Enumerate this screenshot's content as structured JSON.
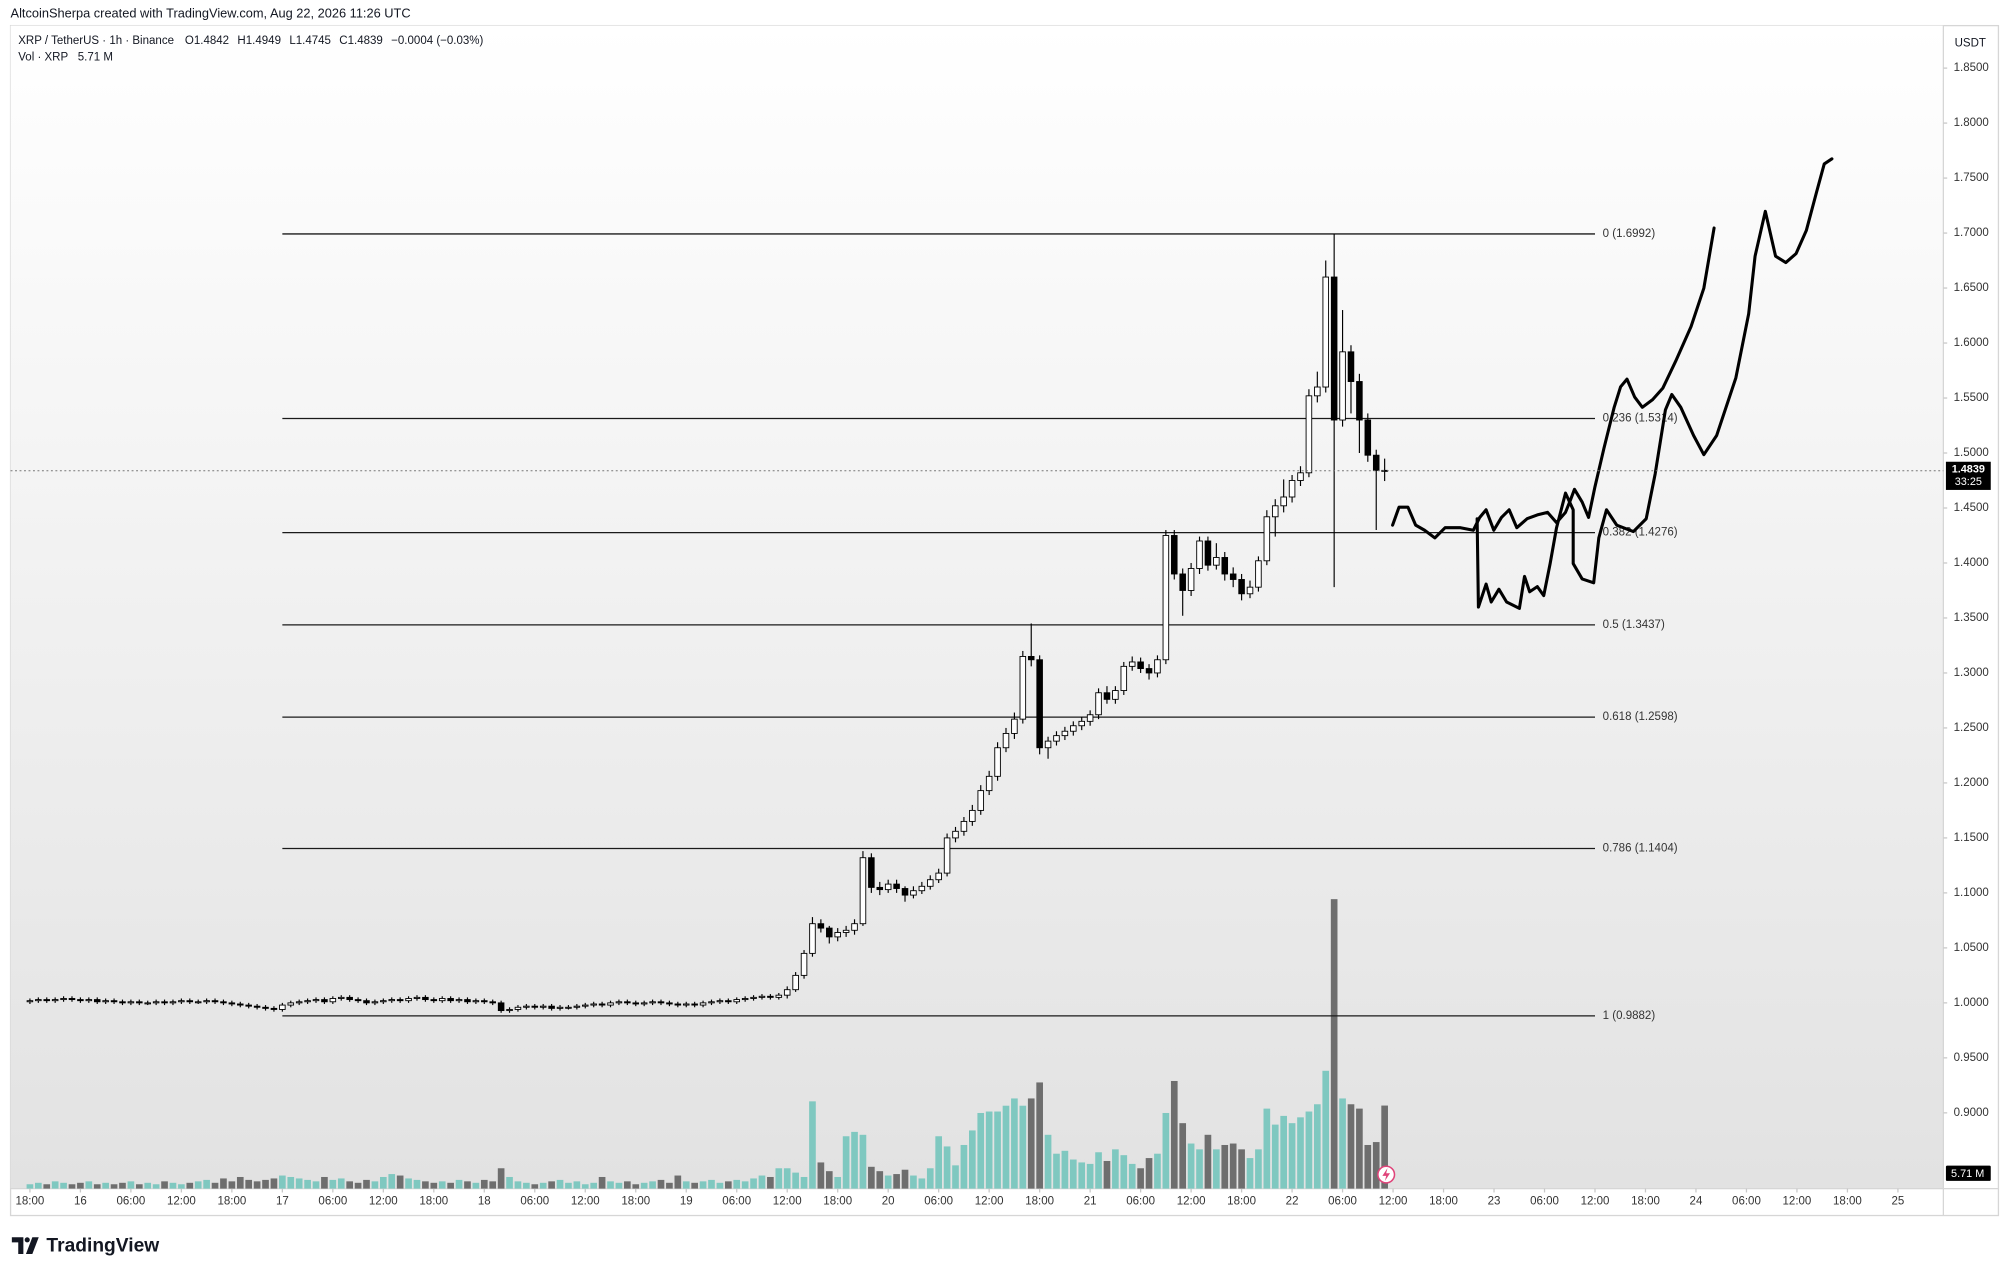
{
  "chart_data": {
    "type": "candlestick",
    "header": {
      "credit": "AltcoinSherpa created with TradingView.com, Aug 22, 2026 11:26 UTC",
      "symbol": "XRP / TetherUS · 1h · Binance",
      "ohlc": [
        {
          "key": "O",
          "value": "1.4842"
        },
        {
          "key": "H",
          "value": "1.4949"
        },
        {
          "key": "L",
          "value": "1.4745"
        },
        {
          "key": "C",
          "value": "1.4839"
        }
      ],
      "change": "−0.0004 (−0.03%)",
      "volume_label": "Vol · XRP",
      "volume_value": "5.71 M"
    },
    "currency": "USDT",
    "last_price_label": "1.4839",
    "countdown": "33:25",
    "volume_badge": "5.71 M",
    "brand": "TradingView",
    "up_color": "#ffffff",
    "down_color": "#000000",
    "volume_up_color": "#7fc8c0",
    "volume_down_color": "#6e6e6e",
    "grid": false,
    "xlim": [
      -2.3,
      227.4
    ],
    "ylim": [
      0.8311,
      1.8863
    ],
    "xticks": [
      {
        "value": 0,
        "label": "18:00"
      },
      {
        "value": 6,
        "label": "16"
      },
      {
        "value": 12,
        "label": "06:00"
      },
      {
        "value": 18,
        "label": "12:00"
      },
      {
        "value": 24,
        "label": "18:00"
      },
      {
        "value": 30,
        "label": "17"
      },
      {
        "value": 36,
        "label": "06:00"
      },
      {
        "value": 42,
        "label": "12:00"
      },
      {
        "value": 48,
        "label": "18:00"
      },
      {
        "value": 54,
        "label": "18"
      },
      {
        "value": 60,
        "label": "06:00"
      },
      {
        "value": 66,
        "label": "12:00"
      },
      {
        "value": 72,
        "label": "18:00"
      },
      {
        "value": 78,
        "label": "19"
      },
      {
        "value": 84,
        "label": "06:00"
      },
      {
        "value": 90,
        "label": "12:00"
      },
      {
        "value": 96,
        "label": "18:00"
      },
      {
        "value": 102,
        "label": "20"
      },
      {
        "value": 108,
        "label": "06:00"
      },
      {
        "value": 114,
        "label": "12:00"
      },
      {
        "value": 120,
        "label": "18:00"
      },
      {
        "value": 126,
        "label": "21"
      },
      {
        "value": 132,
        "label": "06:00"
      },
      {
        "value": 138,
        "label": "12:00"
      },
      {
        "value": 144,
        "label": "18:00"
      },
      {
        "value": 150,
        "label": "22"
      },
      {
        "value": 156,
        "label": "06:00"
      },
      {
        "value": 162,
        "label": "12:00"
      },
      {
        "value": 168,
        "label": "18:00"
      },
      {
        "value": 174,
        "label": "23"
      },
      {
        "value": 180,
        "label": "06:00"
      },
      {
        "value": 186,
        "label": "12:00"
      },
      {
        "value": 192,
        "label": "18:00"
      },
      {
        "value": 198,
        "label": "24"
      },
      {
        "value": 204,
        "label": "06:00"
      },
      {
        "value": 210,
        "label": "12:00"
      },
      {
        "value": 216,
        "label": "18:00"
      },
      {
        "value": 222,
        "label": "25"
      }
    ],
    "yticks": [
      {
        "value": 0.9,
        "label": "0.9000"
      },
      {
        "value": 0.95,
        "label": "0.9500"
      },
      {
        "value": 1.0,
        "label": "1.0000"
      },
      {
        "value": 1.05,
        "label": "1.0500"
      },
      {
        "value": 1.1,
        "label": "1.1000"
      },
      {
        "value": 1.15,
        "label": "1.1500"
      },
      {
        "value": 1.2,
        "label": "1.2000"
      },
      {
        "value": 1.25,
        "label": "1.2500"
      },
      {
        "value": 1.3,
        "label": "1.3000"
      },
      {
        "value": 1.35,
        "label": "1.3500"
      },
      {
        "value": 1.4,
        "label": "1.4000"
      },
      {
        "value": 1.45,
        "label": "1.4500"
      },
      {
        "value": 1.5,
        "label": "1.5000"
      },
      {
        "value": 1.55,
        "label": "1.5500"
      },
      {
        "value": 1.6,
        "label": "1.6000"
      },
      {
        "value": 1.65,
        "label": "1.6500"
      },
      {
        "value": 1.7,
        "label": "1.7000"
      },
      {
        "value": 1.75,
        "label": "1.7500"
      },
      {
        "value": 1.8,
        "label": "1.8000"
      },
      {
        "value": 1.85,
        "label": "1.8500"
      }
    ],
    "fib": {
      "xrange": [
        30,
        186
      ],
      "levels": [
        {
          "label": "0 (1.6992)",
          "price": 1.6992
        },
        {
          "label": "0.236 (1.5314)",
          "price": 1.5314
        },
        {
          "label": "0.382 (1.4276)",
          "price": 1.4276
        },
        {
          "label": "0.5 (1.3437)",
          "price": 1.3437
        },
        {
          "label": "0.618 (1.2598)",
          "price": 1.2598
        },
        {
          "label": "0.786 (1.1404)",
          "price": 1.1404
        },
        {
          "label": "1 (0.9882)",
          "price": 0.9882
        }
      ]
    },
    "x": [
      0,
      1,
      2,
      3,
      4,
      5,
      6,
      7,
      8,
      9,
      10,
      11,
      12,
      13,
      14,
      15,
      16,
      17,
      18,
      19,
      20,
      21,
      22,
      23,
      24,
      25,
      26,
      27,
      28,
      29,
      30,
      31,
      32,
      33,
      34,
      35,
      36,
      37,
      38,
      39,
      40,
      41,
      42,
      43,
      44,
      45,
      46,
      47,
      48,
      49,
      50,
      51,
      52,
      53,
      54,
      55,
      56,
      57,
      58,
      59,
      60,
      61,
      62,
      63,
      64,
      65,
      66,
      67,
      68,
      69,
      70,
      71,
      72,
      73,
      74,
      75,
      76,
      77,
      78,
      79,
      80,
      81,
      82,
      83,
      84,
      85,
      86,
      87,
      88,
      89,
      90,
      91,
      92,
      93,
      94,
      95,
      96,
      97,
      98,
      99,
      100,
      101,
      102,
      103,
      104,
      105,
      106,
      107,
      108,
      109,
      110,
      111,
      112,
      113,
      114,
      115,
      116,
      117,
      118,
      119,
      120,
      121,
      122,
      123,
      124,
      125,
      126,
      127,
      128,
      129,
      130,
      131,
      132,
      133,
      134,
      135,
      136,
      137,
      138,
      139,
      140,
      141,
      142,
      143,
      144,
      145,
      146,
      147,
      148,
      149,
      150,
      151,
      152,
      153,
      154,
      155,
      156,
      157,
      158,
      159,
      160,
      161
    ],
    "open": [
      1.001,
      1.002,
      1.003,
      1.002,
      1.003,
      1.004,
      1.003,
      1.002,
      1.003,
      1.001,
      1.002,
      1.001,
      1.0,
      1.001,
      1.0,
      1.0,
      1.001,
      1.0,
      1.001,
      1.002,
      1.001,
      1.001,
      1.002,
      1.001,
      1.0,
      0.999,
      0.998,
      0.997,
      0.996,
      0.995,
      0.994,
      0.998,
      1.0,
      1.001,
      1.002,
      1.003,
      1.001,
      1.004,
      1.005,
      1.003,
      1.002,
      1.0,
      1.001,
      1.002,
      1.003,
      1.002,
      1.004,
      1.005,
      1.003,
      1.002,
      1.004,
      1.002,
      1.003,
      1.001,
      1.002,
      1.001,
      1.0,
      0.993,
      0.994,
      0.996,
      0.997,
      0.996,
      0.997,
      0.995,
      0.996,
      0.996,
      0.997,
      0.998,
      0.999,
      0.998,
      1.0,
      1.001,
      1.0,
      0.999,
      1.0,
      1.001,
      1.0,
      0.999,
      0.998,
      0.999,
      0.998,
      1.0,
      1.001,
      1.002,
      1.001,
      1.003,
      1.004,
      1.005,
      1.006,
      1.005,
      1.007,
      1.012,
      1.025,
      1.045,
      1.072,
      1.068,
      1.06,
      1.064,
      1.066,
      1.072,
      1.132,
      1.105,
      1.103,
      1.108,
      1.104,
      1.098,
      1.102,
      1.106,
      1.112,
      1.118,
      1.15,
      1.156,
      1.165,
      1.175,
      1.193,
      1.206,
      1.232,
      1.245,
      1.258,
      1.315,
      1.312,
      1.232,
      1.238,
      1.243,
      1.247,
      1.252,
      1.256,
      1.262,
      1.282,
      1.276,
      1.284,
      1.306,
      1.31,
      1.304,
      1.3,
      1.312,
      1.425,
      1.39,
      1.375,
      1.395,
      1.42,
      1.398,
      1.405,
      1.39,
      1.385,
      1.372,
      1.378,
      1.402,
      1.442,
      1.452,
      1.46,
      1.475,
      1.482,
      1.552,
      1.56,
      1.66,
      1.53,
      1.592,
      1.565,
      1.53,
      1.498,
      1.4842
    ],
    "high": [
      1.004,
      1.005,
      1.005,
      1.005,
      1.006,
      1.006,
      1.005,
      1.005,
      1.005,
      1.004,
      1.004,
      1.003,
      1.003,
      1.003,
      1.002,
      1.003,
      1.003,
      1.003,
      1.004,
      1.004,
      1.003,
      1.004,
      1.004,
      1.003,
      1.002,
      1.001,
      1.0,
      0.999,
      0.998,
      0.997,
      1.0,
      1.002,
      1.003,
      1.004,
      1.005,
      1.005,
      1.006,
      1.007,
      1.007,
      1.005,
      1.004,
      1.003,
      1.004,
      1.005,
      1.005,
      1.006,
      1.007,
      1.007,
      1.005,
      1.006,
      1.006,
      1.005,
      1.005,
      1.004,
      1.004,
      1.003,
      1.002,
      0.996,
      0.998,
      0.999,
      0.999,
      0.999,
      0.999,
      0.998,
      0.998,
      0.999,
      1.0,
      1.001,
      1.001,
      1.002,
      1.003,
      1.003,
      1.002,
      1.002,
      1.003,
      1.003,
      1.002,
      1.001,
      1.001,
      1.001,
      1.002,
      1.003,
      1.004,
      1.004,
      1.005,
      1.006,
      1.007,
      1.008,
      1.008,
      1.009,
      1.015,
      1.028,
      1.048,
      1.078,
      1.076,
      1.07,
      1.068,
      1.07,
      1.076,
      1.138,
      1.136,
      1.11,
      1.112,
      1.112,
      1.106,
      1.106,
      1.11,
      1.116,
      1.122,
      1.154,
      1.16,
      1.169,
      1.18,
      1.198,
      1.211,
      1.237,
      1.25,
      1.264,
      1.32,
      1.345,
      1.316,
      1.242,
      1.247,
      1.251,
      1.256,
      1.26,
      1.266,
      1.286,
      1.288,
      1.288,
      1.31,
      1.315,
      1.314,
      1.308,
      1.316,
      1.43,
      1.43,
      1.395,
      1.4,
      1.424,
      1.424,
      1.418,
      1.41,
      1.396,
      1.39,
      1.384,
      1.406,
      1.448,
      1.458,
      1.476,
      1.48,
      1.488,
      1.558,
      1.574,
      1.675,
      1.6992,
      1.63,
      1.598,
      1.572,
      1.536,
      1.503,
      1.4949
    ],
    "low": [
      0.999,
      1.0,
      1.0,
      1.0,
      1.001,
      1.001,
      1.0,
      1.0,
      0.999,
      0.999,
      0.999,
      0.998,
      0.998,
      0.998,
      0.998,
      0.998,
      0.998,
      0.998,
      0.999,
      0.999,
      0.999,
      0.999,
      0.999,
      0.998,
      0.997,
      0.996,
      0.995,
      0.994,
      0.993,
      0.992,
      0.992,
      0.996,
      0.998,
      0.999,
      1.0,
      0.999,
      0.999,
      1.002,
      1.001,
      1.0,
      0.998,
      0.998,
      0.999,
      1.0,
      1.0,
      1.0,
      1.002,
      1.001,
      1.0,
      1.0,
      1.0,
      1.0,
      0.999,
      0.999,
      0.999,
      0.998,
      0.991,
      0.991,
      0.992,
      0.994,
      0.994,
      0.994,
      0.993,
      0.993,
      0.994,
      0.994,
      0.995,
      0.996,
      0.996,
      0.996,
      0.998,
      0.998,
      0.997,
      0.997,
      0.998,
      0.998,
      0.997,
      0.996,
      0.996,
      0.996,
      0.996,
      0.998,
      0.999,
      0.999,
      0.999,
      1.001,
      1.002,
      1.003,
      1.003,
      1.003,
      1.004,
      1.01,
      1.022,
      1.042,
      1.064,
      1.054,
      1.056,
      1.06,
      1.062,
      1.07,
      1.1,
      1.098,
      1.1,
      1.1,
      1.092,
      1.095,
      1.099,
      1.103,
      1.109,
      1.115,
      1.146,
      1.152,
      1.161,
      1.171,
      1.189,
      1.202,
      1.228,
      1.24,
      1.254,
      1.306,
      1.226,
      1.222,
      1.234,
      1.239,
      1.243,
      1.248,
      1.252,
      1.258,
      1.272,
      1.272,
      1.28,
      1.302,
      1.3,
      1.294,
      1.296,
      1.308,
      1.385,
      1.352,
      1.37,
      1.39,
      1.393,
      1.394,
      1.384,
      1.378,
      1.366,
      1.368,
      1.374,
      1.398,
      1.424,
      1.446,
      1.455,
      1.47,
      1.478,
      1.546,
      1.555,
      1.378,
      1.524,
      1.536,
      1.5,
      1.492,
      1.43,
      1.4745
    ],
    "close": [
      1.002,
      1.003,
      1.002,
      1.003,
      1.004,
      1.003,
      1.002,
      1.003,
      1.001,
      1.002,
      1.001,
      1.0,
      1.001,
      1.0,
      1.0,
      1.001,
      1.0,
      1.001,
      1.002,
      1.001,
      1.001,
      1.002,
      1.001,
      1.0,
      0.999,
      0.998,
      0.997,
      0.996,
      0.995,
      0.994,
      0.998,
      1.0,
      1.001,
      1.002,
      1.003,
      1.001,
      1.004,
      1.005,
      1.003,
      1.002,
      1.0,
      1.001,
      1.002,
      1.003,
      1.002,
      1.004,
      1.005,
      1.003,
      1.002,
      1.004,
      1.002,
      1.003,
      1.001,
      1.002,
      1.001,
      1.0,
      0.993,
      0.994,
      0.996,
      0.997,
      0.996,
      0.997,
      0.995,
      0.996,
      0.996,
      0.997,
      0.998,
      0.999,
      0.998,
      1.0,
      1.001,
      1.0,
      0.999,
      1.0,
      1.001,
      1.0,
      0.999,
      0.998,
      0.999,
      0.998,
      1.0,
      1.001,
      1.002,
      1.001,
      1.003,
      1.004,
      1.005,
      1.006,
      1.005,
      1.007,
      1.012,
      1.025,
      1.045,
      1.072,
      1.068,
      1.06,
      1.064,
      1.066,
      1.072,
      1.132,
      1.105,
      1.103,
      1.108,
      1.104,
      1.098,
      1.102,
      1.106,
      1.112,
      1.118,
      1.15,
      1.156,
      1.165,
      1.175,
      1.193,
      1.206,
      1.232,
      1.245,
      1.258,
      1.315,
      1.312,
      1.232,
      1.238,
      1.243,
      1.247,
      1.252,
      1.256,
      1.262,
      1.282,
      1.276,
      1.284,
      1.306,
      1.31,
      1.304,
      1.3,
      1.312,
      1.425,
      1.39,
      1.375,
      1.395,
      1.42,
      1.398,
      1.405,
      1.39,
      1.385,
      1.372,
      1.378,
      1.402,
      1.442,
      1.452,
      1.46,
      1.475,
      1.482,
      1.552,
      1.56,
      1.66,
      1.53,
      1.592,
      1.565,
      1.53,
      1.498,
      1.4842,
      1.4839
    ],
    "volume": [
      0.3,
      0.4,
      0.3,
      0.5,
      0.4,
      0.3,
      0.4,
      0.5,
      0.3,
      0.4,
      0.3,
      0.4,
      0.5,
      0.3,
      0.4,
      0.3,
      0.5,
      0.4,
      0.3,
      0.4,
      0.5,
      0.6,
      0.4,
      0.7,
      0.5,
      0.8,
      0.6,
      0.5,
      0.6,
      0.7,
      0.9,
      0.8,
      0.7,
      0.6,
      0.5,
      0.8,
      0.6,
      0.7,
      0.5,
      0.4,
      0.6,
      0.5,
      0.8,
      1.0,
      0.9,
      0.7,
      0.6,
      0.5,
      0.4,
      0.5,
      0.4,
      0.6,
      0.5,
      0.4,
      0.6,
      0.5,
      1.4,
      0.8,
      0.5,
      0.4,
      0.3,
      0.4,
      0.5,
      0.6,
      0.4,
      0.5,
      0.3,
      0.4,
      0.8,
      0.5,
      0.4,
      0.5,
      0.3,
      0.4,
      0.5,
      0.6,
      0.4,
      0.9,
      0.5,
      0.4,
      0.5,
      0.6,
      0.4,
      0.5,
      0.6,
      0.5,
      0.7,
      0.9,
      0.8,
      1.4,
      1.4,
      1.1,
      0.8,
      6.0,
      1.8,
      1.2,
      0.8,
      3.6,
      3.9,
      3.7,
      1.5,
      1.2,
      0.9,
      1.0,
      1.3,
      0.9,
      0.7,
      1.4,
      3.6,
      2.9,
      1.6,
      3.0,
      4.0,
      5.2,
      5.3,
      5.3,
      5.7,
      6.2,
      5.7,
      6.2,
      7.3,
      3.7,
      2.4,
      2.6,
      2.0,
      1.8,
      1.7,
      2.5,
      1.9,
      2.7,
      2.3,
      1.7,
      1.4,
      2.1,
      2.4,
      5.2,
      7.4,
      4.5,
      3.1,
      2.7,
      3.7,
      2.7,
      3.0,
      3.1,
      2.7,
      2.1,
      2.7,
      5.5,
      4.4,
      5.0,
      4.5,
      4.9,
      5.3,
      5.8,
      8.1,
      19.9,
      6.2,
      5.8,
      5.5,
      3.0,
      3.2,
      5.71
    ]
  }
}
